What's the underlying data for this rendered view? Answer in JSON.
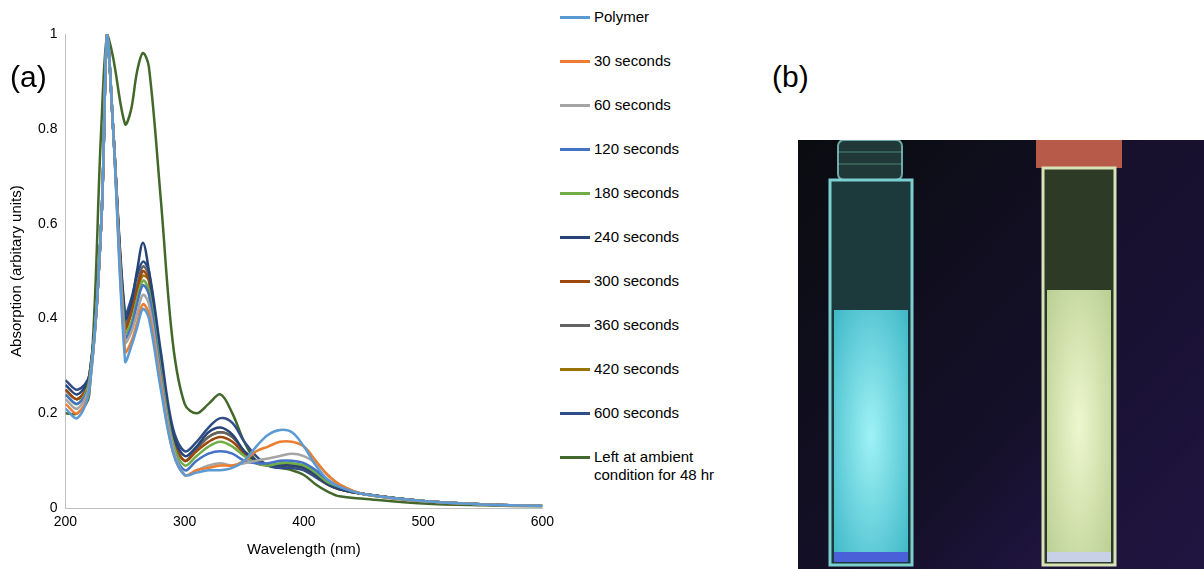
{
  "chart_data": {
    "type": "line",
    "panel_label": "(a)",
    "x_label": "Wavelength (nm)",
    "y_label": "Absorption (arbitary units)",
    "x": [
      200,
      210,
      220,
      230,
      235,
      240,
      250,
      255,
      260,
      265,
      270,
      280,
      290,
      300,
      310,
      320,
      330,
      340,
      350,
      360,
      370,
      380,
      390,
      400,
      410,
      420,
      430,
      450,
      500,
      550,
      600
    ],
    "xlim": [
      200,
      600
    ],
    "xticks": [
      200,
      300,
      400,
      500,
      600
    ],
    "ylim": [
      0,
      1
    ],
    "yticks": [
      0,
      0.2,
      0.4,
      0.6,
      0.8,
      1
    ],
    "grid": false,
    "legend": "right",
    "series": [
      {
        "name": "Polymer",
        "color": "#5b9bd5",
        "values": [
          0.21,
          0.19,
          0.25,
          0.6,
          1.0,
          0.8,
          0.31,
          0.34,
          0.38,
          0.42,
          0.4,
          0.25,
          0.12,
          0.07,
          0.075,
          0.08,
          0.08,
          0.085,
          0.1,
          0.13,
          0.155,
          0.165,
          0.16,
          0.13,
          0.09,
          0.06,
          0.045,
          0.03,
          0.015,
          0.008,
          0.005
        ]
      },
      {
        "name": "30 seconds",
        "color": "#ed7d31",
        "values": [
          0.22,
          0.2,
          0.25,
          0.6,
          1.0,
          0.8,
          0.33,
          0.35,
          0.39,
          0.43,
          0.41,
          0.26,
          0.12,
          0.07,
          0.08,
          0.085,
          0.09,
          0.09,
          0.1,
          0.12,
          0.13,
          0.14,
          0.14,
          0.13,
          0.1,
          0.07,
          0.05,
          0.03,
          0.015,
          0.008,
          0.005
        ]
      },
      {
        "name": "60 seconds",
        "color": "#a5a5a5",
        "values": [
          0.23,
          0.21,
          0.26,
          0.6,
          1.0,
          0.8,
          0.35,
          0.37,
          0.41,
          0.45,
          0.43,
          0.27,
          0.13,
          0.07,
          0.08,
          0.09,
          0.095,
          0.09,
          0.095,
          0.1,
          0.105,
          0.11,
          0.115,
          0.11,
          0.095,
          0.07,
          0.05,
          0.03,
          0.015,
          0.008,
          0.005
        ]
      },
      {
        "name": "120 seconds",
        "color": "#4472c4",
        "values": [
          0.24,
          0.22,
          0.26,
          0.6,
          1.0,
          0.8,
          0.36,
          0.38,
          0.43,
          0.47,
          0.45,
          0.28,
          0.13,
          0.08,
          0.1,
          0.115,
          0.12,
          0.115,
          0.1,
          0.095,
          0.095,
          0.1,
          0.1,
          0.095,
          0.08,
          0.06,
          0.045,
          0.03,
          0.015,
          0.008,
          0.005
        ]
      },
      {
        "name": "180 seconds",
        "color": "#70ad47",
        "values": [
          0.24,
          0.22,
          0.27,
          0.6,
          1.0,
          0.8,
          0.37,
          0.39,
          0.44,
          0.48,
          0.46,
          0.29,
          0.14,
          0.09,
          0.11,
          0.13,
          0.14,
          0.13,
          0.11,
          0.095,
          0.09,
          0.095,
          0.095,
          0.09,
          0.075,
          0.055,
          0.045,
          0.03,
          0.015,
          0.008,
          0.005
        ]
      },
      {
        "name": "240 seconds",
        "color": "#264478",
        "values": [
          0.26,
          0.24,
          0.28,
          0.6,
          1.0,
          0.8,
          0.4,
          0.43,
          0.5,
          0.56,
          0.5,
          0.32,
          0.16,
          0.11,
          0.13,
          0.16,
          0.17,
          0.155,
          0.12,
          0.1,
          0.09,
          0.09,
          0.09,
          0.085,
          0.07,
          0.05,
          0.04,
          0.03,
          0.015,
          0.008,
          0.005
        ]
      },
      {
        "name": "300 seconds",
        "color": "#9e480e",
        "values": [
          0.25,
          0.23,
          0.27,
          0.6,
          1.0,
          0.8,
          0.38,
          0.41,
          0.46,
          0.5,
          0.48,
          0.3,
          0.15,
          0.1,
          0.12,
          0.14,
          0.15,
          0.14,
          0.115,
          0.095,
          0.09,
          0.09,
          0.09,
          0.085,
          0.07,
          0.05,
          0.04,
          0.03,
          0.015,
          0.008,
          0.005
        ]
      },
      {
        "name": "360 seconds",
        "color": "#636363",
        "values": [
          0.25,
          0.23,
          0.27,
          0.6,
          1.0,
          0.8,
          0.39,
          0.42,
          0.47,
          0.51,
          0.49,
          0.31,
          0.15,
          0.1,
          0.125,
          0.15,
          0.16,
          0.15,
          0.12,
          0.1,
          0.09,
          0.09,
          0.09,
          0.085,
          0.07,
          0.05,
          0.04,
          0.03,
          0.015,
          0.008,
          0.005
        ]
      },
      {
        "name": "420 seconds",
        "color": "#997300",
        "values": [
          0.25,
          0.23,
          0.27,
          0.6,
          1.0,
          0.8,
          0.38,
          0.41,
          0.46,
          0.49,
          0.48,
          0.3,
          0.15,
          0.1,
          0.125,
          0.15,
          0.16,
          0.15,
          0.12,
          0.1,
          0.09,
          0.09,
          0.09,
          0.085,
          0.07,
          0.05,
          0.04,
          0.03,
          0.015,
          0.008,
          0.005
        ]
      },
      {
        "name": "600 seconds",
        "color": "#2f4d86",
        "values": [
          0.27,
          0.25,
          0.28,
          0.6,
          1.0,
          0.8,
          0.41,
          0.44,
          0.49,
          0.52,
          0.5,
          0.33,
          0.17,
          0.12,
          0.14,
          0.17,
          0.19,
          0.18,
          0.14,
          0.11,
          0.09,
          0.085,
          0.085,
          0.08,
          0.065,
          0.05,
          0.04,
          0.03,
          0.015,
          0.008,
          0.005
        ]
      },
      {
        "name": "Left at ambient condition for 48 hr",
        "color": "#43682b",
        "values": [
          0.2,
          0.2,
          0.24,
          0.8,
          1.0,
          0.95,
          0.81,
          0.84,
          0.92,
          0.96,
          0.93,
          0.65,
          0.35,
          0.22,
          0.2,
          0.22,
          0.24,
          0.2,
          0.14,
          0.1,
          0.09,
          0.085,
          0.08,
          0.07,
          0.05,
          0.035,
          0.025,
          0.02,
          0.01,
          0.006,
          0.004
        ]
      }
    ]
  },
  "photo": {
    "panel_label": "(b)"
  }
}
